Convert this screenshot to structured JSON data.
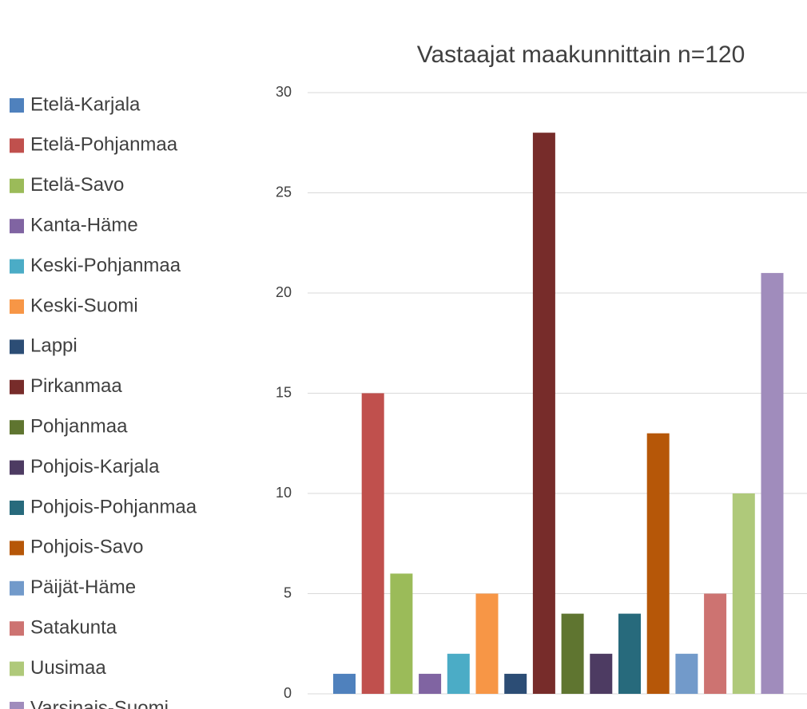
{
  "chart_data": {
    "type": "bar",
    "title": "Vastaajat maakunnittain n=120",
    "series": [
      {
        "name": "Etelä-Karjala",
        "color": "#4f81bd",
        "values": [
          1
        ]
      },
      {
        "name": "Etelä-Pohjanmaa",
        "color": "#c0504d",
        "values": [
          15
        ]
      },
      {
        "name": "Etelä-Savo",
        "color": "#9bbb59",
        "values": [
          6
        ]
      },
      {
        "name": "Kanta-Häme",
        "color": "#8064a2",
        "values": [
          1
        ]
      },
      {
        "name": "Keski-Pohjanmaa",
        "color": "#4bacc6",
        "values": [
          2
        ]
      },
      {
        "name": "Keski-Suomi",
        "color": "#f79646",
        "values": [
          5
        ]
      },
      {
        "name": "Lappi",
        "color": "#2c4d75",
        "values": [
          1
        ]
      },
      {
        "name": "Pirkanmaa",
        "color": "#772c2a",
        "values": [
          28
        ]
      },
      {
        "name": "Pohjanmaa",
        "color": "#5f7530",
        "values": [
          4
        ]
      },
      {
        "name": "Pohjois-Karjala",
        "color": "#4d3b62",
        "values": [
          2
        ]
      },
      {
        "name": "Pohjois-Pohjanmaa",
        "color": "#276a7c",
        "values": [
          4
        ]
      },
      {
        "name": "Pohjois-Savo",
        "color": "#b65708",
        "values": [
          13
        ]
      },
      {
        "name": "Päijät-Häme",
        "color": "#729aca",
        "values": [
          2
        ]
      },
      {
        "name": "Satakunta",
        "color": "#cd7371",
        "values": [
          5
        ]
      },
      {
        "name": "Uusimaa",
        "color": "#afc97a",
        "values": [
          10
        ]
      },
      {
        "name": "Varsinais-Suomi",
        "color": "#a08cbc",
        "values": [
          21
        ]
      }
    ],
    "ylim": [
      0,
      30
    ],
    "yticks": [
      0,
      5,
      10,
      15,
      20,
      25,
      30
    ],
    "grid": true,
    "legend": "left"
  }
}
